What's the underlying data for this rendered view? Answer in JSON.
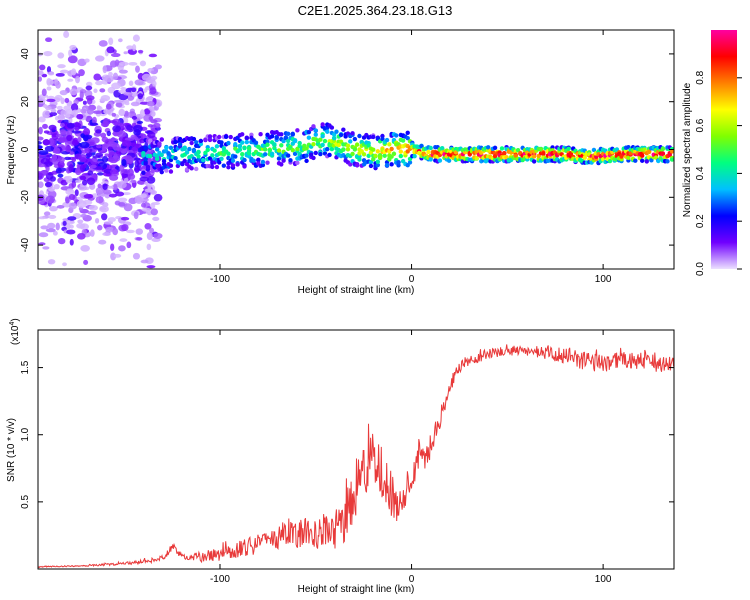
{
  "title": "C2E1.2025.364.23.18.G13",
  "chart_data": [
    {
      "type": "heatmap",
      "xlabel": "Height of straight line (km)",
      "ylabel": "Frequency (Hz)",
      "xlim": [
        -195,
        137
      ],
      "ylim": [
        -50,
        50
      ],
      "xticks": [
        -100,
        0,
        100
      ],
      "yticks": [
        -40,
        -20,
        0,
        20,
        40
      ],
      "colorbar": {
        "label": "Normalized spectral amplitude",
        "range": [
          0,
          1
        ],
        "ticks": [
          "0.0",
          "0.2",
          "0.4",
          "0.6",
          "0.8"
        ],
        "tick_values": [
          0.0,
          0.2,
          0.4,
          0.6,
          0.8
        ],
        "colors": [
          "#ece0ff",
          "#7000ff",
          "#0000ff",
          "#00c0ff",
          "#00ff80",
          "#80ff00",
          "#ffff00",
          "#ff8000",
          "#ff0000",
          "#ff00a0"
        ]
      },
      "ridge": {
        "description_points_x": [
          -140,
          -120,
          -100,
          -80,
          -60,
          -45,
          -30,
          -20,
          -10,
          0,
          10,
          50,
          80,
          95,
          110,
          137
        ],
        "center_freq": [
          -3,
          -2,
          -1,
          0,
          1,
          4,
          0,
          -1,
          0,
          0,
          -2,
          -2,
          -2,
          -3,
          -2,
          -2
        ],
        "peak_amplitude": [
          0.35,
          0.4,
          0.45,
          0.5,
          0.55,
          0.55,
          0.6,
          0.65,
          0.75,
          0.8,
          0.95,
          0.97,
          0.95,
          0.9,
          0.97,
          0.97
        ]
      }
    },
    {
      "type": "line",
      "xlabel": "Height of straight line (km)",
      "ylabel": "SNR (10 * v/v)",
      "yscale_label": "(x10",
      "yscale_exp": "4",
      "xlim": [
        -195,
        137
      ],
      "ylim": [
        0,
        1.78
      ],
      "xticks": [
        -100,
        0,
        100
      ],
      "yticks": [
        0.5,
        1.0,
        1.5
      ],
      "ytick_labels": [
        "0.5",
        "1.0",
        "1.5"
      ],
      "series": [
        {
          "name": "SNR",
          "color": "#e83a3a",
          "x": [
            -195,
            -170,
            -150,
            -140,
            -130,
            -125,
            -122,
            -118,
            -110,
            -100,
            -90,
            -80,
            -70,
            -60,
            -50,
            -40,
            -35,
            -30,
            -25,
            -20,
            -15,
            -10,
            -5,
            0,
            5,
            10,
            15,
            20,
            25,
            30,
            35,
            40,
            50,
            60,
            70,
            80,
            90,
            100,
            110,
            120,
            130,
            137
          ],
          "y": [
            0.02,
            0.03,
            0.05,
            0.07,
            0.1,
            0.2,
            0.15,
            0.1,
            0.13,
            0.16,
            0.21,
            0.26,
            0.33,
            0.36,
            0.4,
            0.45,
            0.55,
            0.75,
            0.95,
            1.0,
            0.9,
            0.7,
            0.65,
            0.8,
            0.95,
            1.0,
            1.2,
            1.4,
            1.55,
            1.6,
            1.62,
            1.64,
            1.66,
            1.67,
            1.66,
            1.65,
            1.62,
            1.6,
            1.62,
            1.6,
            1.58,
            1.58
          ],
          "noise": [
            0.01,
            0.01,
            0.02,
            0.03,
            0.05,
            0.06,
            0.05,
            0.04,
            0.08,
            0.1,
            0.12,
            0.15,
            0.18,
            0.2,
            0.25,
            0.3,
            0.35,
            0.4,
            0.4,
            0.4,
            0.4,
            0.35,
            0.3,
            0.25,
            0.25,
            0.2,
            0.15,
            0.12,
            0.1,
            0.08,
            0.08,
            0.08,
            0.08,
            0.08,
            0.1,
            0.12,
            0.14,
            0.14,
            0.12,
            0.12,
            0.12,
            0.12
          ]
        }
      ]
    }
  ]
}
